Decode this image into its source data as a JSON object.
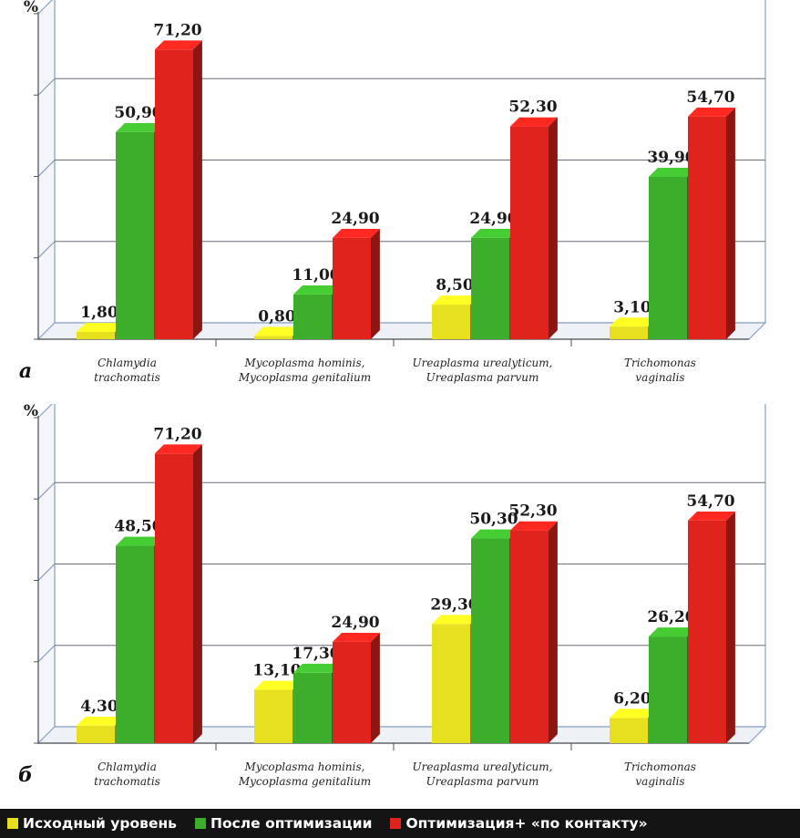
{
  "legend": [
    {
      "label": "Исходный уровень",
      "color": "#e6e01e"
    },
    {
      "label": "После оптимизации",
      "color": "#3cae2c"
    },
    {
      "label": "Оптимизация+ «по контакту»",
      "color": "#e0231d"
    }
  ],
  "chart_data": [
    {
      "type": "bar",
      "panel_letter": "а",
      "ylabel": "%",
      "ylim": [
        0,
        80
      ],
      "grid": true,
      "categories": [
        [
          "Chlamydia",
          "trachomatis"
        ],
        [
          "Mycoplasma hominis,",
          "Mycoplasma genitalium"
        ],
        [
          "Ureaplasma urealyticum,",
          "Ureaplasma parvum"
        ],
        [
          "Trichomonas",
          "vaginalis"
        ]
      ],
      "series": [
        {
          "name": "Исходный уровень",
          "values": [
            1.8,
            0.8,
            8.5,
            3.1
          ],
          "labels": [
            "1,80",
            "0,80",
            "8,50",
            "3,10"
          ]
        },
        {
          "name": "После оптимизации",
          "values": [
            50.9,
            11.0,
            24.9,
            39.9
          ],
          "labels": [
            "50,90",
            "11,00",
            "24,90",
            "39,90"
          ]
        },
        {
          "name": "Оптимизация+ «по контакту»",
          "values": [
            71.2,
            24.9,
            52.3,
            54.7
          ],
          "labels": [
            "71,20",
            "24,90",
            "52,30",
            "54,70"
          ]
        }
      ]
    },
    {
      "type": "bar",
      "panel_letter": "б",
      "ylabel": "%",
      "ylim": [
        0,
        80
      ],
      "grid": true,
      "categories": [
        [
          "Chlamydia",
          "trachomatis"
        ],
        [
          "Mycoplasma hominis,",
          "Mycoplasma genitalium"
        ],
        [
          "Ureaplasma urealyticum,",
          "Ureaplasma parvum"
        ],
        [
          "Trichomonas",
          "vaginalis"
        ]
      ],
      "series": [
        {
          "name": "Исходный уровень",
          "values": [
            4.3,
            13.1,
            29.3,
            6.2
          ],
          "labels": [
            "4,30",
            "13,10",
            "29,30",
            "6,20"
          ]
        },
        {
          "name": "После оптимизации",
          "values": [
            48.5,
            17.3,
            50.3,
            26.2
          ],
          "labels": [
            "48,50",
            "17,30",
            "50,30",
            "26,20"
          ]
        },
        {
          "name": "Оптимизация+ «по контакту»",
          "values": [
            71.2,
            24.9,
            52.3,
            54.7
          ],
          "labels": [
            "71,20",
            "24,90",
            "52,30",
            "54,70"
          ]
        }
      ]
    }
  ]
}
